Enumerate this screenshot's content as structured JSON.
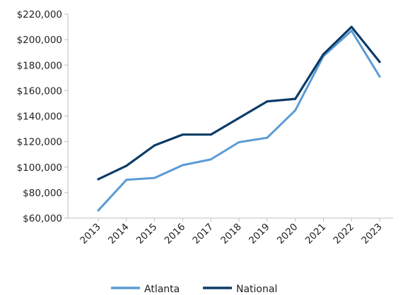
{
  "chart_data": {
    "type": "line",
    "title": "",
    "xlabel": "",
    "ylabel": "",
    "categories": [
      "2013",
      "2014",
      "2015",
      "2016",
      "2017",
      "2018",
      "2019",
      "2020",
      "2021",
      "2022",
      "2023"
    ],
    "series": [
      {
        "name": "Atlanta",
        "color": "#5b9bd5",
        "values": [
          66000,
          90000,
          91500,
          101500,
          106000,
          119500,
          123000,
          144500,
          187000,
          207000,
          171000
        ]
      },
      {
        "name": "National",
        "color": "#0d3b66",
        "values": [
          90500,
          101000,
          117000,
          125500,
          125500,
          138500,
          151500,
          153500,
          188500,
          210000,
          182500
        ]
      }
    ],
    "ylim": [
      60000,
      220000
    ],
    "y_ticks": [
      60000,
      80000,
      100000,
      120000,
      140000,
      160000,
      180000,
      200000,
      220000
    ],
    "y_tick_labels": [
      "$60,000",
      "$80,000",
      "$100,000",
      "$120,000",
      "$140,000",
      "$160,000",
      "$180,000",
      "$200,000",
      "$220,000"
    ],
    "grid": false,
    "legend_position": "bottom-center"
  }
}
